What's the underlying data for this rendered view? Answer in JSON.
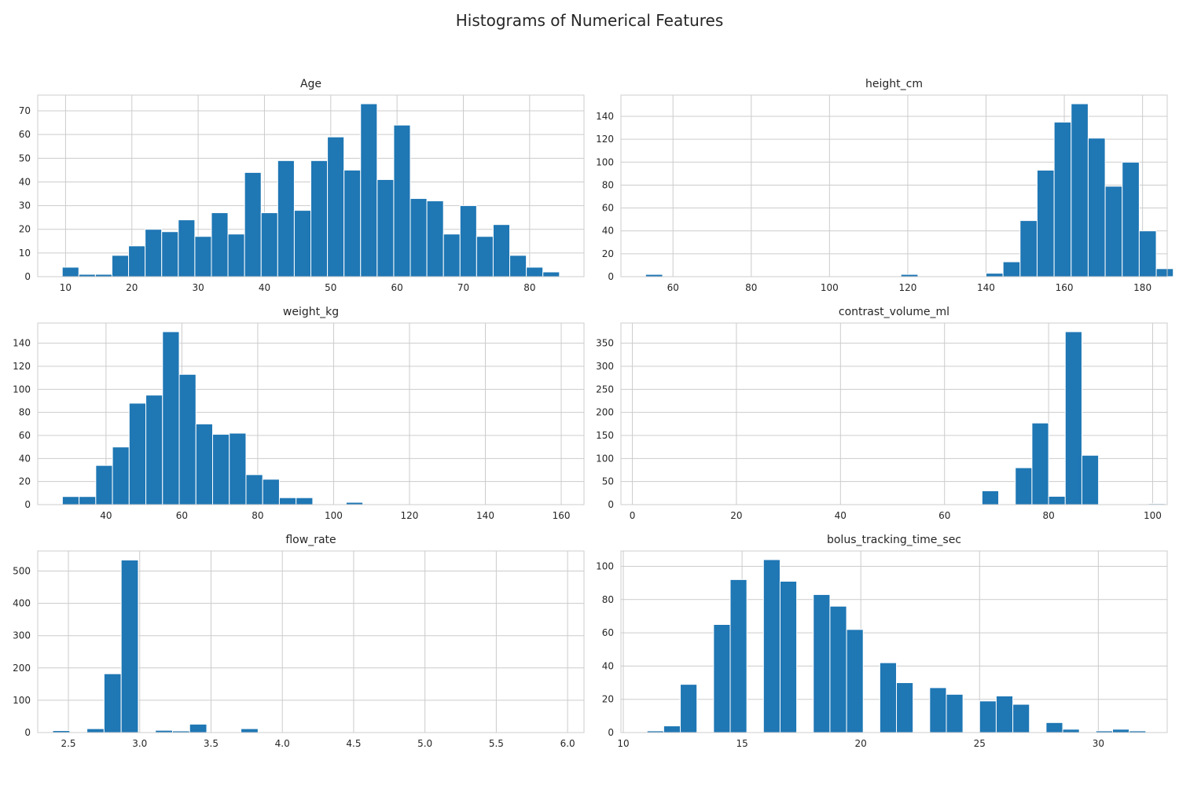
{
  "figure": {
    "suptitle": "Histograms of Numerical Features"
  },
  "colors": {
    "bar": "#1f77b4",
    "bar_edge": "#ffffff",
    "grid": "#cccccc",
    "axes_edge": "#cccccc",
    "text": "#262626"
  },
  "chart_data": [
    {
      "type": "bar",
      "title": "Age",
      "xlabel": "",
      "ylabel": "",
      "grid": true,
      "xlim": [
        5.8,
        88.2
      ],
      "ylim": [
        0,
        76.65
      ],
      "xticks": [
        10,
        20,
        30,
        40,
        50,
        60,
        70,
        80
      ],
      "yticks": [
        0,
        10,
        20,
        30,
        40,
        50,
        60,
        70
      ],
      "bin_start": 9.5,
      "bin_width": 2.5,
      "values": [
        4,
        1,
        1,
        9,
        13,
        20,
        19,
        24,
        17,
        27,
        18,
        44,
        27,
        49,
        28,
        49,
        59,
        45,
        73,
        41,
        64,
        33,
        32,
        18,
        30,
        17,
        22,
        9,
        4,
        2
      ]
    },
    {
      "type": "bar",
      "title": "height_cm",
      "xlabel": "",
      "ylabel": "",
      "grid": true,
      "xlim": [
        46.7,
        186.3
      ],
      "ylim": [
        0,
        158.55
      ],
      "xticks": [
        60,
        80,
        100,
        120,
        140,
        160,
        180
      ],
      "yticks": [
        0,
        20,
        40,
        60,
        80,
        100,
        120,
        140
      ],
      "bin_start": 53.0,
      "bin_width": 4.35,
      "values": [
        2,
        0,
        0,
        0,
        0,
        0,
        0,
        0,
        0,
        0,
        0,
        0,
        0,
        0,
        0,
        2,
        0,
        0,
        0,
        0,
        3,
        13,
        49,
        93,
        135,
        151,
        121,
        79,
        100,
        40,
        7
      ]
    },
    {
      "type": "bar",
      "title": "weight_kg",
      "xlabel": "",
      "ylabel": "",
      "grid": true,
      "xlim": [
        22,
        166
      ],
      "ylim": [
        0,
        157.5
      ],
      "xticks": [
        40,
        60,
        80,
        100,
        120,
        140,
        160
      ],
      "yticks": [
        0,
        20,
        40,
        60,
        80,
        100,
        120,
        140
      ],
      "bin_start": 28.5,
      "bin_width": 4.4,
      "values": [
        7,
        7,
        34,
        50,
        88,
        95,
        150,
        113,
        70,
        61,
        62,
        26,
        22,
        6,
        6,
        0,
        0,
        2,
        0,
        0,
        0,
        0,
        0,
        0,
        0,
        0,
        0,
        0,
        0,
        0
      ]
    },
    {
      "type": "bar",
      "title": "contrast_volume_ml",
      "xlabel": "",
      "ylabel": "",
      "grid": true,
      "xlim": [
        -2.2,
        102.8
      ],
      "ylim": [
        0,
        393.75
      ],
      "xticks": [
        0,
        20,
        40,
        60,
        80,
        100
      ],
      "yticks": [
        0,
        50,
        100,
        150,
        200,
        250,
        300,
        350
      ],
      "bin_start": 0.0,
      "bin_width": 3.2,
      "values": [
        0,
        0,
        0,
        0,
        0,
        0,
        0,
        0,
        0,
        0,
        0,
        0,
        0,
        0,
        0,
        0,
        0,
        0,
        0,
        0,
        0,
        30,
        0,
        80,
        177,
        18,
        375,
        107,
        0,
        0,
        0,
        2
      ]
    },
    {
      "type": "bar",
      "title": "flow_rate",
      "xlabel": "",
      "ylabel": "",
      "grid": true,
      "xlim": [
        2.285,
        6.115
      ],
      "ylim": [
        0,
        562
      ],
      "xticks": [
        2.5,
        3.0,
        3.5,
        4.0,
        4.5,
        5.0,
        5.5,
        6.0
      ],
      "xtick_labels": [
        "2.5",
        "3.0",
        "3.5",
        "4.0",
        "4.5",
        "5.0",
        "5.5",
        "6.0"
      ],
      "yticks": [
        0,
        100,
        200,
        300,
        400,
        500
      ],
      "bin_start": 2.39,
      "bin_width": 0.12,
      "values": [
        6,
        0,
        12,
        182,
        534,
        0,
        7,
        5,
        26,
        0,
        0,
        12,
        0,
        0,
        0,
        0,
        0,
        0,
        0,
        0,
        0,
        0,
        0,
        0,
        0,
        0,
        0,
        0,
        0,
        0
      ]
    },
    {
      "type": "bar",
      "title": "bolus_tracking_time_sec",
      "xlabel": "",
      "ylabel": "",
      "grid": true,
      "xlim": [
        9.9,
        32.9
      ],
      "ylim": [
        0,
        109.2
      ],
      "xticks": [
        10,
        15,
        20,
        25,
        30
      ],
      "yticks": [
        0,
        20,
        40,
        60,
        80,
        100
      ],
      "bin_start": 11.0,
      "bin_width": 0.7,
      "values": [
        1,
        4,
        29,
        0,
        65,
        92,
        0,
        104,
        91,
        0,
        83,
        76,
        62,
        0,
        42,
        30,
        0,
        27,
        23,
        0,
        19,
        22,
        17,
        0,
        6,
        2,
        0,
        1,
        2,
        1
      ]
    }
  ]
}
